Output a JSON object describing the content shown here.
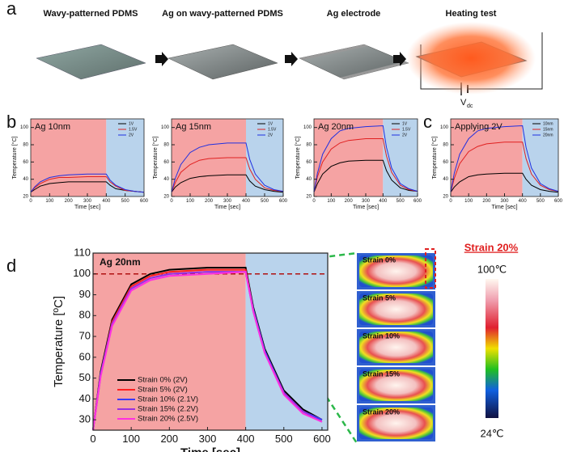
{
  "panel_labels": [
    "a",
    "b",
    "c",
    "d"
  ],
  "schematic": {
    "steps": [
      "Wavy-patterned PDMS",
      "Ag on wavy-patterned PDMS",
      "Ag electrode",
      "Heating test"
    ],
    "voltage": "V",
    "voltage_sub": "dc"
  },
  "chart_data": [
    {
      "type": "line",
      "title": "Ag 10nm",
      "xlabel": "Time [sec]",
      "ylabel": "Temperature [°C]",
      "x": [
        0,
        20,
        50,
        100,
        150,
        200,
        300,
        400,
        420,
        450,
        500,
        550,
        600
      ],
      "series": [
        {
          "name": "1V",
          "color": "#000000",
          "values": [
            25,
            28,
            32,
            35,
            36,
            37,
            37,
            37,
            33,
            29,
            27,
            26,
            25
          ]
        },
        {
          "name": "1.5V",
          "color": "#e02020",
          "values": [
            25,
            30,
            35,
            40,
            42,
            42,
            43,
            43,
            37,
            32,
            27,
            26,
            25
          ]
        },
        {
          "name": "2V",
          "color": "#2030e0",
          "values": [
            25,
            31,
            37,
            42,
            44,
            45,
            46,
            46,
            39,
            33,
            28,
            26,
            25
          ]
        }
      ],
      "regions": [
        {
          "from": 0,
          "to": 400,
          "color": "#f5a3a3"
        },
        {
          "from": 400,
          "to": 600,
          "color": "#b9d3ec"
        }
      ],
      "xlim": [
        0,
        600
      ],
      "ylim": [
        20,
        110
      ],
      "xticks": [
        0,
        100,
        200,
        300,
        400,
        500,
        600
      ],
      "yticks": [
        20,
        40,
        60,
        80,
        100
      ],
      "legend": "upper right"
    },
    {
      "type": "line",
      "title": "Ag 15nm",
      "xlabel": "Time [sec]",
      "ylabel": "Temperature [°C]",
      "x": [
        0,
        20,
        50,
        100,
        150,
        200,
        300,
        400,
        420,
        450,
        500,
        550,
        600
      ],
      "series": [
        {
          "name": "1V",
          "color": "#000000",
          "values": [
            25,
            31,
            36,
            41,
            43,
            44,
            45,
            45,
            38,
            32,
            28,
            26,
            25
          ]
        },
        {
          "name": "1.5V",
          "color": "#e02020",
          "values": [
            25,
            36,
            48,
            57,
            62,
            64,
            65,
            65,
            52,
            40,
            30,
            27,
            26
          ]
        },
        {
          "name": "2V",
          "color": "#2030e0",
          "values": [
            25,
            41,
            57,
            71,
            77,
            80,
            82,
            82,
            63,
            46,
            33,
            28,
            26
          ]
        }
      ],
      "regions": [
        {
          "from": 0,
          "to": 400,
          "color": "#f5a3a3"
        },
        {
          "from": 400,
          "to": 600,
          "color": "#b9d3ec"
        }
      ],
      "xlim": [
        0,
        600
      ],
      "ylim": [
        20,
        110
      ],
      "xticks": [
        0,
        100,
        200,
        300,
        400,
        500,
        600
      ],
      "yticks": [
        20,
        40,
        60,
        80,
        100
      ],
      "legend": "upper right"
    },
    {
      "type": "line",
      "title": "Ag 20nm",
      "xlabel": "Time [sec]",
      "ylabel": "Temperature [°C]",
      "x": [
        0,
        20,
        50,
        100,
        150,
        200,
        300,
        400,
        420,
        450,
        500,
        550,
        600
      ],
      "series": [
        {
          "name": "1V",
          "color": "#000000",
          "values": [
            25,
            35,
            46,
            55,
            59,
            61,
            62,
            62,
            50,
            39,
            30,
            27,
            26
          ]
        },
        {
          "name": "1.5V",
          "color": "#e02020",
          "values": [
            25,
            43,
            60,
            75,
            82,
            85,
            87,
            87,
            67,
            48,
            33,
            28,
            26
          ]
        },
        {
          "name": "2V",
          "color": "#2030e0",
          "values": [
            25,
            47,
            69,
            87,
            96,
            99,
            101,
            102,
            77,
            53,
            35,
            29,
            26
          ]
        }
      ],
      "regions": [
        {
          "from": 0,
          "to": 400,
          "color": "#f5a3a3"
        },
        {
          "from": 400,
          "to": 600,
          "color": "#b9d3ec"
        }
      ],
      "xlim": [
        0,
        600
      ],
      "ylim": [
        20,
        110
      ],
      "xticks": [
        0,
        100,
        200,
        300,
        400,
        500,
        600
      ],
      "yticks": [
        20,
        40,
        60,
        80,
        100
      ],
      "legend": "upper right"
    },
    {
      "type": "line",
      "title": "Applying 2V",
      "xlabel": "Time [sec]",
      "ylabel": "Temperature [°C]",
      "x": [
        0,
        20,
        50,
        100,
        150,
        200,
        300,
        400,
        420,
        450,
        500,
        550,
        600
      ],
      "series": [
        {
          "name": "10nm",
          "color": "#000000",
          "values": [
            25,
            31,
            37,
            43,
            45,
            46,
            47,
            47,
            40,
            33,
            28,
            26,
            25
          ]
        },
        {
          "name": "15nm",
          "color": "#e02020",
          "values": [
            25,
            41,
            58,
            72,
            78,
            81,
            83,
            83,
            64,
            46,
            33,
            28,
            26
          ]
        },
        {
          "name": "20nm",
          "color": "#2030e0",
          "values": [
            25,
            47,
            69,
            87,
            96,
            99,
            101,
            102,
            77,
            53,
            35,
            29,
            26
          ]
        }
      ],
      "regions": [
        {
          "from": 0,
          "to": 400,
          "color": "#f5a3a3"
        },
        {
          "from": 400,
          "to": 600,
          "color": "#b9d3ec"
        }
      ],
      "xlim": [
        0,
        600
      ],
      "ylim": [
        20,
        110
      ],
      "xticks": [
        0,
        100,
        200,
        300,
        400,
        500,
        600
      ],
      "yticks": [
        20,
        40,
        60,
        80,
        100
      ],
      "legend": "upper right"
    },
    {
      "type": "line",
      "title": "Ag 20nm",
      "xlabel": "Time [sec]",
      "ylabel": "Temperature [ºC]",
      "x": [
        0,
        20,
        50,
        100,
        150,
        200,
        300,
        400,
        420,
        450,
        500,
        550,
        600
      ],
      "series": [
        {
          "name": "Strain 0% (2V)",
          "color": "#000000",
          "values": [
            25,
            53,
            78,
            95,
            100,
            102,
            103,
            103,
            84,
            64,
            44,
            35,
            30
          ]
        },
        {
          "name": "Strain 5% (2V)",
          "color": "#ff2020",
          "values": [
            25,
            52,
            77,
            94,
            99,
            101,
            102,
            102,
            83,
            63,
            43,
            34,
            30
          ]
        },
        {
          "name": "Strain 10% (2.1V)",
          "color": "#3a3aff",
          "values": [
            25,
            52,
            76,
            93,
            98,
            100,
            101,
            101,
            83,
            63,
            43,
            34,
            30
          ]
        },
        {
          "name": "Strain 15% (2.2V)",
          "color": "#9a30e0",
          "values": [
            25,
            51,
            76,
            93,
            98,
            100,
            101,
            101,
            82,
            62,
            43,
            34,
            29
          ]
        },
        {
          "name": "Strain 20% (2.5V)",
          "color": "#ff30e0",
          "values": [
            25,
            51,
            75,
            92,
            97,
            99,
            100,
            101,
            82,
            62,
            42,
            33,
            29
          ]
        }
      ],
      "regions": [
        {
          "from": 0,
          "to": 400,
          "color": "#f5a3a3"
        },
        {
          "from": 400,
          "to": 615,
          "color": "#b9d3ec"
        }
      ],
      "reference_line": 100,
      "xlim": [
        0,
        615
      ],
      "ylim": [
        25,
        110
      ],
      "xticks": [
        0,
        100,
        200,
        300,
        400,
        500,
        600
      ],
      "yticks": [
        30,
        40,
        50,
        60,
        70,
        80,
        90,
        100,
        110
      ],
      "legend": "lower left"
    }
  ],
  "thermal": {
    "title": "Strain 20%",
    "labels": [
      "Strain 0%",
      "Strain 5%",
      "Strain 10%",
      "Strain 15%",
      "Strain 20%"
    ],
    "scale_max": "100℃",
    "scale_min": "24℃"
  }
}
